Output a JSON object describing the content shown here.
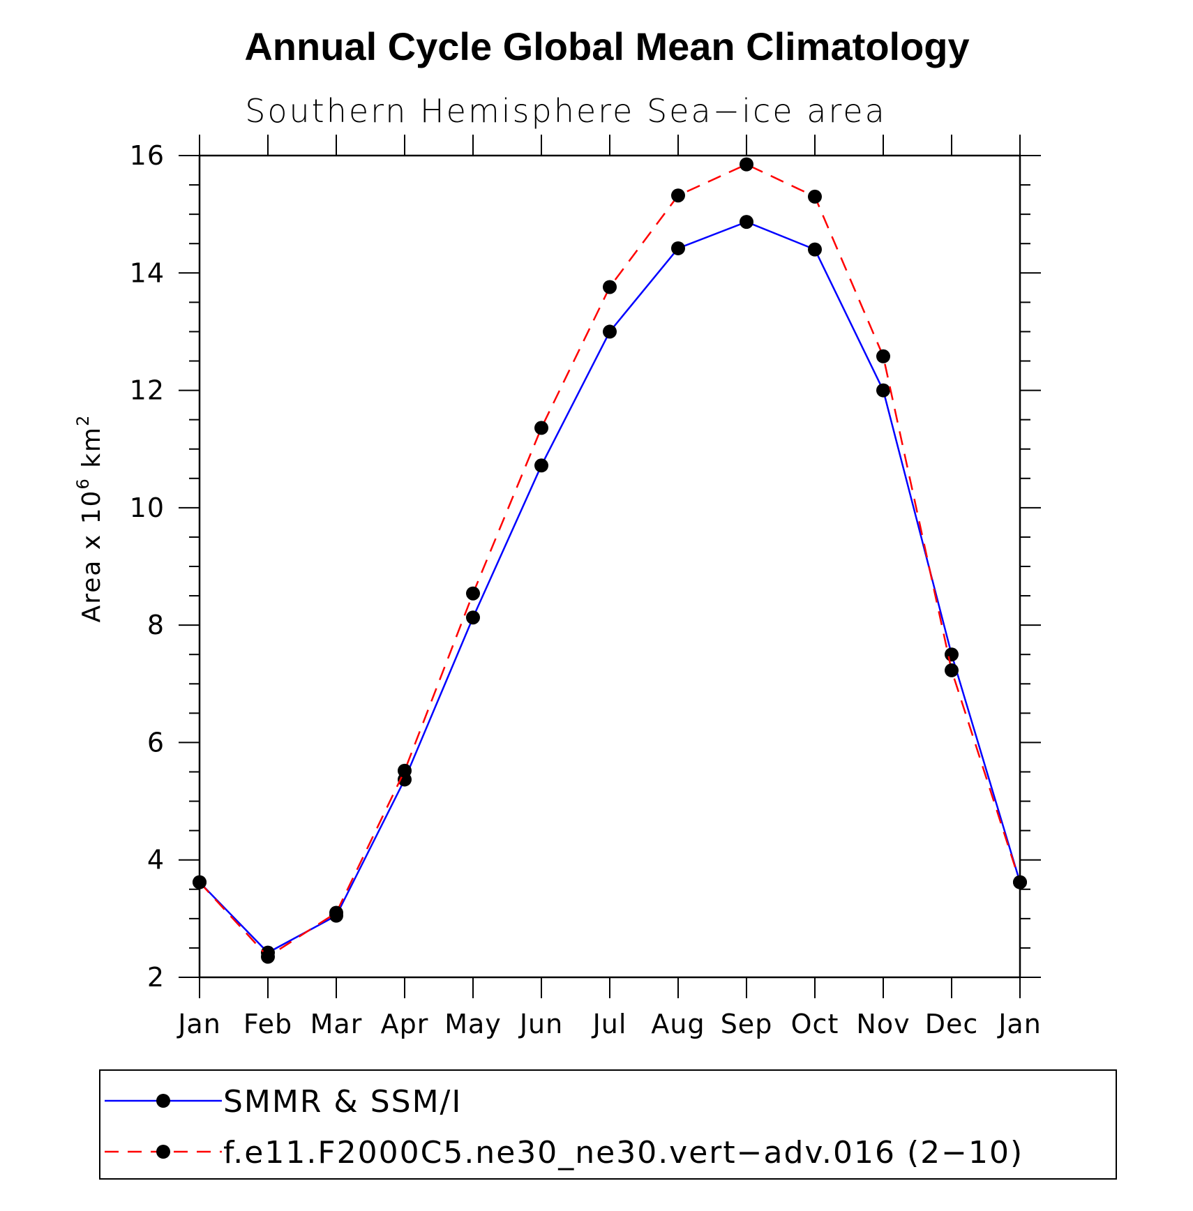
{
  "chart_data": {
    "type": "line",
    "title": "Annual Cycle Global Mean Climatology",
    "subtitle": "Southern Hemisphere Sea−ice area",
    "ylabel": "Area x 10",
    "ylabel_sup1": "6",
    "ylabel_mid": " km",
    "ylabel_sup2": "2",
    "xlabel": "",
    "categories": [
      "Jan",
      "Feb",
      "Mar",
      "Apr",
      "May",
      "Jun",
      "Jul",
      "Aug",
      "Sep",
      "Oct",
      "Nov",
      "Dec",
      "Jan"
    ],
    "ylim": [
      2,
      16
    ],
    "yticks": [
      2,
      4,
      6,
      8,
      10,
      12,
      14,
      16
    ],
    "ytick_labels": [
      "2",
      "4",
      "6",
      "8",
      "10",
      "12",
      "14",
      "16"
    ],
    "series": [
      {
        "name": "SMMR & SSM/I",
        "color": "#0000ff",
        "style": "solid",
        "marker": "filled-circle",
        "values": [
          3.62,
          2.42,
          3.05,
          5.37,
          8.13,
          10.72,
          13.0,
          14.42,
          14.87,
          14.4,
          12.0,
          7.5,
          3.62
        ]
      },
      {
        "name": "f.e11.F2000C5.ne30_ne30.vert−adv.016 (2−10)",
        "color": "#ff0000",
        "style": "dashed",
        "marker": "filled-circle",
        "values": [
          3.62,
          2.35,
          3.1,
          5.52,
          8.54,
          11.36,
          13.76,
          15.32,
          15.85,
          15.3,
          12.58,
          7.23,
          3.62
        ]
      }
    ],
    "grid": false,
    "legend_position": "bottom"
  }
}
